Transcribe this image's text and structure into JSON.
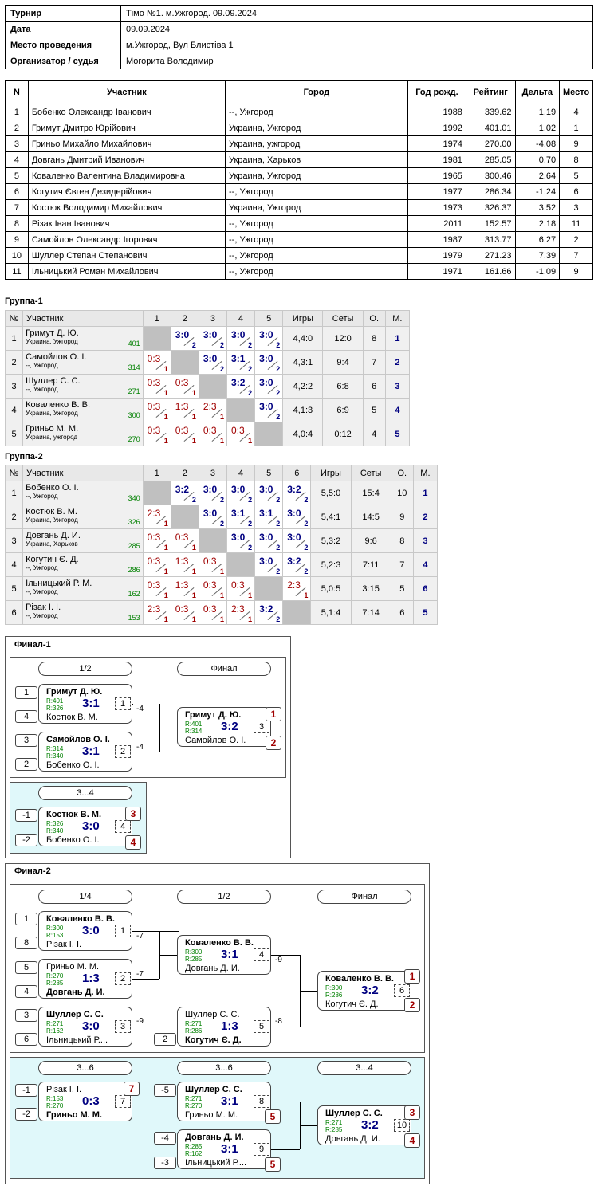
{
  "info": {
    "rows": [
      {
        "k": "Турнир",
        "v": "Тімо №1. м.Ужгород. 09.09.2024"
      },
      {
        "k": "Дата",
        "v": "09.09.2024"
      },
      {
        "k": "Место проведения",
        "v": "м.Ужгород, Вул Блистіва 1"
      },
      {
        "k": "Организатор / судья",
        "v": "Могорита Володимир"
      }
    ]
  },
  "players": {
    "headers": [
      "N",
      "Участник",
      "Город",
      "Год рожд.",
      "Рейтинг",
      "Дельта",
      "Место"
    ],
    "rows": [
      [
        "1",
        "Бобенко Олександр Іванович",
        "--, Ужгород",
        "1988",
        "339.62",
        "1.19",
        "4"
      ],
      [
        "2",
        "Гримут Дмитро Юрійович",
        "Украина, Ужгород",
        "1992",
        "401.01",
        "1.02",
        "1"
      ],
      [
        "3",
        "Гриньо Михайло Михайлович",
        "Украина, ужгород",
        "1974",
        "270.00",
        "-4.08",
        "9"
      ],
      [
        "4",
        "Довгань Дмитрий Иванович",
        "Украина, Харьков",
        "1981",
        "285.05",
        "0.70",
        "8"
      ],
      [
        "5",
        "Коваленко Валентина Владимировна",
        "Украина, Ужгород",
        "1965",
        "300.46",
        "2.64",
        "5"
      ],
      [
        "6",
        "Когутич Євген Дезидерійович",
        "--, Ужгород",
        "1977",
        "286.34",
        "-1.24",
        "6"
      ],
      [
        "7",
        "Костюк Володимир Михайлович",
        "Украина, Ужгород",
        "1973",
        "326.37",
        "3.52",
        "3"
      ],
      [
        "8",
        "Різак Іван Іванович",
        "--, Ужгород",
        "2011",
        "152.57",
        "2.18",
        "11"
      ],
      [
        "9",
        "Самойлов Олександр Ігорович",
        "--, Ужгород",
        "1987",
        "313.77",
        "6.27",
        "2"
      ],
      [
        "10",
        "Шуллер Степан Степанович",
        "--, Ужгород",
        "1979",
        "271.23",
        "7.39",
        "7"
      ],
      [
        "11",
        "Ільницький Роман Михайлович",
        "--, Ужгород",
        "1971",
        "161.66",
        "-1.09",
        "9"
      ]
    ]
  },
  "groups": [
    {
      "title": "Группа-1",
      "h_num": "№",
      "h_name": "Участник",
      "h_games": "Игры",
      "h_sets": "Сеты",
      "h_pts": "О.",
      "h_place": "М.",
      "rows": [
        {
          "n": "1",
          "name": "Гримут Д. Ю.",
          "city": "Украина, Ужгород",
          "rating": "401",
          "games": "4,4:0",
          "sets": "12:0",
          "pts": "8",
          "place": "1"
        },
        {
          "n": "2",
          "name": "Самойлов О. І.",
          "city": "--, Ужгород",
          "rating": "314",
          "games": "4,3:1",
          "sets": "9:4",
          "pts": "7",
          "place": "2"
        },
        {
          "n": "3",
          "name": "Шуллер С. С.",
          "city": "--, Ужгород",
          "rating": "271",
          "games": "4,2:2",
          "sets": "6:8",
          "pts": "6",
          "place": "3"
        },
        {
          "n": "4",
          "name": "Коваленко В. В.",
          "city": "Украина, Ужгород",
          "rating": "300",
          "games": "4,1:3",
          "sets": "6:9",
          "pts": "5",
          "place": "4"
        },
        {
          "n": "5",
          "name": "Гриньо М. М.",
          "city": "Украина, ужгород",
          "rating": "270",
          "games": "4,0:4",
          "sets": "0:12",
          "pts": "4",
          "place": "5"
        }
      ],
      "cells": [
        [
          null,
          [
            "3:0",
            "2"
          ],
          [
            "3:0",
            "2"
          ],
          [
            "3:0",
            "2"
          ],
          [
            "3:0",
            "2"
          ]
        ],
        [
          [
            "0:3",
            "1"
          ],
          null,
          [
            "3:0",
            "2"
          ],
          [
            "3:1",
            "2"
          ],
          [
            "3:0",
            "2"
          ]
        ],
        [
          [
            "0:3",
            "1"
          ],
          [
            "0:3",
            "1"
          ],
          null,
          [
            "3:2",
            "2"
          ],
          [
            "3:0",
            "2"
          ]
        ],
        [
          [
            "0:3",
            "1"
          ],
          [
            "1:3",
            "1"
          ],
          [
            "2:3",
            "1"
          ],
          null,
          [
            "3:0",
            "2"
          ]
        ],
        [
          [
            "0:3",
            "1"
          ],
          [
            "0:3",
            "1"
          ],
          [
            "0:3",
            "1"
          ],
          [
            "0:3",
            "1"
          ],
          null
        ]
      ]
    },
    {
      "title": "Группа-2",
      "h_num": "№",
      "h_name": "Участник",
      "h_games": "Игры",
      "h_sets": "Сеты",
      "h_pts": "О.",
      "h_place": "М.",
      "rows": [
        {
          "n": "1",
          "name": "Бобенко О. І.",
          "city": "--, Ужгород",
          "rating": "340",
          "games": "5,5:0",
          "sets": "15:4",
          "pts": "10",
          "place": "1"
        },
        {
          "n": "2",
          "name": "Костюк В. М.",
          "city": "Украина, Ужгород",
          "rating": "326",
          "games": "5,4:1",
          "sets": "14:5",
          "pts": "9",
          "place": "2"
        },
        {
          "n": "3",
          "name": "Довгань Д. И.",
          "city": "Украина, Харьков",
          "rating": "285",
          "games": "5,3:2",
          "sets": "9:6",
          "pts": "8",
          "place": "3"
        },
        {
          "n": "4",
          "name": "Когутич Є. Д.",
          "city": "--, Ужгород",
          "rating": "286",
          "games": "5,2:3",
          "sets": "7:11",
          "pts": "7",
          "place": "4"
        },
        {
          "n": "5",
          "name": "Ільницький Р. М.",
          "city": "--, Ужгород",
          "rating": "162",
          "games": "5,0:5",
          "sets": "3:15",
          "pts": "5",
          "place": "6"
        },
        {
          "n": "6",
          "name": "Різак І. І.",
          "city": "--, Ужгород",
          "rating": "153",
          "games": "5,1:4",
          "sets": "7:14",
          "pts": "6",
          "place": "5"
        }
      ],
      "cells": [
        [
          null,
          [
            "3:2",
            "2"
          ],
          [
            "3:0",
            "2"
          ],
          [
            "3:0",
            "2"
          ],
          [
            "3:0",
            "2"
          ],
          [
            "3:2",
            "2"
          ]
        ],
        [
          [
            "2:3",
            "1"
          ],
          null,
          [
            "3:0",
            "2"
          ],
          [
            "3:1",
            "2"
          ],
          [
            "3:1",
            "2"
          ],
          [
            "3:0",
            "2"
          ]
        ],
        [
          [
            "0:3",
            "1"
          ],
          [
            "0:3",
            "1"
          ],
          null,
          [
            "3:0",
            "2"
          ],
          [
            "3:0",
            "2"
          ],
          [
            "3:0",
            "2"
          ]
        ],
        [
          [
            "0:3",
            "1"
          ],
          [
            "1:3",
            "1"
          ],
          [
            "0:3",
            "1"
          ],
          null,
          [
            "3:0",
            "2"
          ],
          [
            "3:2",
            "2"
          ]
        ],
        [
          [
            "0:3",
            "1"
          ],
          [
            "1:3",
            "1"
          ],
          [
            "0:3",
            "1"
          ],
          [
            "0:3",
            "1"
          ],
          null,
          [
            "2:3",
            "1"
          ]
        ],
        [
          [
            "2:3",
            "1"
          ],
          [
            "0:3",
            "1"
          ],
          [
            "0:3",
            "1"
          ],
          [
            "2:3",
            "1"
          ],
          [
            "3:2",
            "2"
          ],
          null
        ]
      ]
    }
  ],
  "finals": {
    "f1_title": "Финал-1",
    "f2_title": "Финал-2",
    "pills": [
      "1/2",
      "Финал",
      "3...4",
      "1/4",
      "1/2",
      "Финал",
      "3...6",
      "3...6",
      "3...4"
    ],
    "seeds": [
      "1",
      "4",
      "3",
      "2",
      "-1",
      "-2",
      "1",
      "8",
      "5",
      "4",
      "3",
      "6",
      "2",
      "-1",
      "-2",
      "-5",
      "-4",
      "-3"
    ],
    "diffs": [
      "-4",
      "-4",
      "-7",
      "-7",
      "-9",
      "-9",
      "-8"
    ],
    "places": [
      "1",
      "2",
      "3",
      "4",
      "1",
      "2",
      "7",
      "5",
      "5",
      "3",
      "4"
    ],
    "matches": [
      {
        "p1": "Гримут Д. Ю.",
        "r1": "R:401",
        "p2": "Костюк В. М.",
        "r2": "R:326",
        "res": "3:1",
        "mn": "1",
        "win": 1
      },
      {
        "p1": "Самойлов О. І.",
        "r1": "R:314",
        "p2": "Бобенко О. І.",
        "r2": "R:340",
        "res": "3:1",
        "mn": "2",
        "win": 1
      },
      {
        "p1": "Гримут Д. Ю.",
        "r1": "R:401",
        "p2": "Самойлов О. І.",
        "r2": "R:314",
        "res": "3:2",
        "mn": "3",
        "win": 1
      },
      {
        "p1": "Костюк В. М.",
        "r1": "R:326",
        "p2": "Бобенко О. І.",
        "r2": "R:340",
        "res": "3:0",
        "mn": "4",
        "win": 1
      },
      {
        "p1": "Коваленко В. В.",
        "r1": "R:300",
        "p2": "Різак І. І.",
        "r2": "R:153",
        "res": "3:0",
        "mn": "1",
        "win": 1
      },
      {
        "p1": "Гриньо М. М.",
        "r1": "R:270",
        "p2": "Довгань Д. И.",
        "r2": "R:285",
        "res": "1:3",
        "mn": "2",
        "win": 2
      },
      {
        "p1": "Шуллер С. С.",
        "r1": "R:271",
        "p2": "Ільницький Р....",
        "r2": "R:162",
        "res": "3:0",
        "mn": "3",
        "win": 1
      },
      {
        "p1": "Коваленко В. В.",
        "r1": "R:300",
        "p2": "Довгань Д. И.",
        "r2": "R:285",
        "res": "3:1",
        "mn": "4",
        "win": 1
      },
      {
        "p1": "Шуллер С. С.",
        "r1": "R:271",
        "p2": "Когутич Є. Д.",
        "r2": "R:286",
        "res": "1:3",
        "mn": "5",
        "win": 2
      },
      {
        "p1": "Коваленко В. В.",
        "r1": "R:300",
        "p2": "Когутич Є. Д.",
        "r2": "R:286",
        "res": "3:2",
        "mn": "6",
        "win": 1
      },
      {
        "p1": "Різак І. І.",
        "r1": "R:153",
        "p2": "Гриньо М. М.",
        "r2": "R:270",
        "res": "0:3",
        "mn": "7",
        "win": 2
      },
      {
        "p1": "Шуллер С. С.",
        "r1": "R:271",
        "p2": "Гриньо М. М.",
        "r2": "R:270",
        "res": "3:1",
        "mn": "8",
        "win": 1
      },
      {
        "p1": "Довгань Д. И.",
        "r1": "R:285",
        "p2": "Ільницький Р....",
        "r2": "R:162",
        "res": "3:1",
        "mn": "9",
        "win": 1
      },
      {
        "p1": "Шуллер С. С.",
        "r1": "R:271",
        "p2": "Довгань Д. И.",
        "r2": "R:285",
        "res": "3:2",
        "mn": "10",
        "win": 1
      }
    ]
  }
}
